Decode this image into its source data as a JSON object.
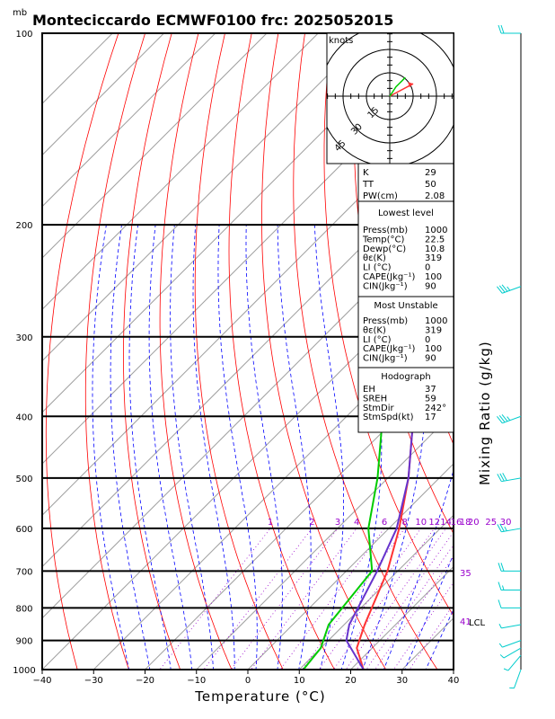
{
  "header": {
    "units_label": "mb",
    "title": "Monteciccardo ECMWF0100 frc: 2025052015"
  },
  "axes": {
    "xlabel": "Temperature (°C)",
    "ylabel_right": "Mixing Ratio (g/kg)",
    "x_ticks": [
      "−40",
      "−30",
      "−20",
      "−10",
      "0",
      "10",
      "20",
      "30",
      "40"
    ],
    "p_ticks": [
      "100",
      "200",
      "300",
      "400",
      "500",
      "600",
      "700",
      "800",
      "900",
      "1000"
    ]
  },
  "mixing_ratio_labels": [
    "1",
    "2",
    "3",
    "4",
    "6",
    "8",
    "10",
    "12",
    "14",
    "16",
    "18",
    "20",
    "25",
    "30"
  ],
  "side_labels": {
    "p700_label": "35",
    "lcl_value": "41",
    "lcl_label": "LCL"
  },
  "hodograph": {
    "units": "knots",
    "ring_labels": [
      "15",
      "30",
      "45"
    ]
  },
  "indices": {
    "k": {
      "label": "K",
      "value": "29"
    },
    "tt": {
      "label": "TT",
      "value": "50"
    },
    "pw": {
      "label": "PW(cm)",
      "value": "2.08"
    }
  },
  "lowest_level": {
    "title": "Lowest level",
    "rows": [
      {
        "label": "Press(mb)",
        "value": "1000"
      },
      {
        "label": "Temp(°C)",
        "value": "22.5"
      },
      {
        "label": "Dewp(°C)",
        "value": "10.8"
      },
      {
        "label": "θε(K)",
        "value": "319"
      },
      {
        "label": "LI (°C)",
        "value": "0"
      },
      {
        "label": "CAPE(Jkg⁻¹)",
        "value": "100"
      },
      {
        "label": "CIN(Jkg⁻¹)",
        "value": "90"
      }
    ]
  },
  "most_unstable": {
    "title": "Most Unstable",
    "rows": [
      {
        "label": "Press(mb)",
        "value": "1000"
      },
      {
        "label": "θε(K)",
        "value": "319"
      },
      {
        "label": "LI (°C)",
        "value": "0"
      },
      {
        "label": "CAPE(Jkg⁻¹)",
        "value": "100"
      },
      {
        "label": "CIN(Jkg⁻¹)",
        "value": "90"
      }
    ]
  },
  "hodograph_stats": {
    "title": "Hodograph",
    "rows": [
      {
        "label": "EH",
        "value": "37"
      },
      {
        "label": "SREH",
        "value": "59"
      },
      {
        "label": "StmDir",
        "value": "242°"
      },
      {
        "label": "StmSpd(kt)",
        "value": "17"
      }
    ]
  },
  "colors": {
    "isotherm": "#a0a0a0",
    "dry_adiabat": "#ff0000",
    "moist_adiabat": "#0000ff",
    "mixing_ratio": "#9900cc",
    "temperature": "#ff3333",
    "dewpoint": "#00cc00",
    "parcel": "#6633cc",
    "wind_barb": "#00cccc",
    "hodo_storm": "#ff3333",
    "hodo_wind": "#00cc00"
  },
  "chart_data": {
    "type": "line",
    "xlabel": "Temperature (°C)",
    "ylabel": "",
    "x_range": [
      -40,
      40
    ],
    "p_range": [
      1000,
      100
    ],
    "series": [
      {
        "name": "",
        "kind": "temperature",
        "points": [
          [
            1000,
            22.5
          ],
          [
            925,
            17
          ],
          [
            850,
            14
          ],
          [
            700,
            8
          ],
          [
            600,
            2
          ],
          [
            500,
            -6
          ],
          [
            400,
            -17
          ],
          [
            300,
            -30
          ],
          [
            250,
            -37
          ],
          [
            200,
            -41
          ],
          [
            150,
            -47
          ],
          [
            100,
            -57
          ]
        ]
      },
      {
        "name": "",
        "kind": "dewpoint",
        "points": [
          [
            1000,
            10.8
          ],
          [
            925,
            10
          ],
          [
            850,
            7
          ],
          [
            700,
            5
          ],
          [
            600,
            -4
          ],
          [
            500,
            -12
          ],
          [
            400,
            -23
          ],
          [
            300,
            -39
          ],
          [
            250,
            -50
          ],
          [
            200,
            -61
          ],
          [
            150,
            -72
          ],
          [
            100,
            -83
          ]
        ]
      },
      {
        "name": "",
        "kind": "parcel",
        "points": [
          [
            1000,
            22.5
          ],
          [
            900,
            13.5
          ],
          [
            850,
            11
          ],
          [
            700,
            6
          ],
          [
            600,
            1.5
          ],
          [
            500,
            -6
          ],
          [
            400,
            -17
          ],
          [
            300,
            -31
          ],
          [
            250,
            -41
          ],
          [
            200,
            -52
          ],
          [
            150,
            -65
          ],
          [
            100,
            -78
          ]
        ]
      }
    ],
    "wind_barbs": [
      {
        "p": 1000,
        "dir": 200,
        "spd": 5
      },
      {
        "p": 950,
        "dir": 220,
        "spd": 5
      },
      {
        "p": 925,
        "dir": 240,
        "spd": 5
      },
      {
        "p": 900,
        "dir": 250,
        "spd": 5
      },
      {
        "p": 850,
        "dir": 260,
        "spd": 5
      },
      {
        "p": 800,
        "dir": 270,
        "spd": 10
      },
      {
        "p": 750,
        "dir": 270,
        "spd": 15
      },
      {
        "p": 700,
        "dir": 270,
        "spd": 20
      },
      {
        "p": 600,
        "dir": 260,
        "spd": 25
      },
      {
        "p": 500,
        "dir": 260,
        "spd": 30
      },
      {
        "p": 400,
        "dir": 250,
        "spd": 35
      },
      {
        "p": 250,
        "dir": 250,
        "spd": 35
      },
      {
        "p": 100,
        "dir": 270,
        "spd": 20
      }
    ],
    "hodograph": {
      "max_kt": 45,
      "rings": [
        15,
        30,
        45
      ],
      "storm_motion": {
        "dir": 242,
        "spd": 17
      },
      "wind_trace": [
        [
          0,
          0
        ],
        [
          2,
          3
        ],
        [
          4,
          6
        ],
        [
          6,
          8
        ],
        [
          8,
          10
        ],
        [
          10,
          12
        ]
      ]
    }
  }
}
